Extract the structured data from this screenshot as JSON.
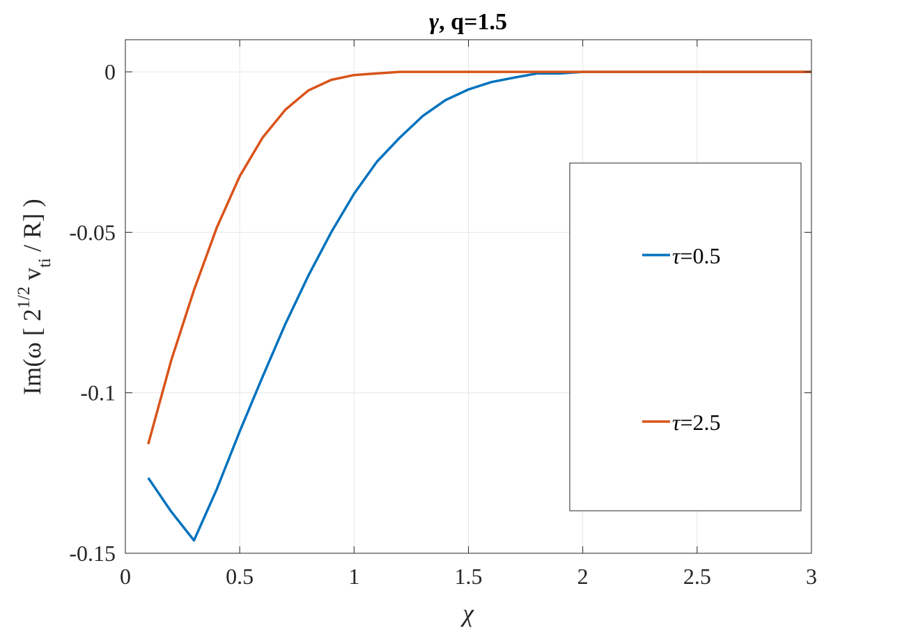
{
  "chart_data": {
    "type": "line",
    "title_prefix": "γ",
    "title_suffix": ", q=1.5",
    "xlabel": "χ",
    "ylabel_parts": {
      "pre": "Im(ω [ 2",
      "sup": "1/2",
      "mid": " v",
      "sub": "ti",
      "post": " / R] )"
    },
    "xlim": [
      0,
      3
    ],
    "ylim": [
      -0.15,
      0.01
    ],
    "xticks": [
      0,
      0.5,
      1,
      1.5,
      2,
      2.5,
      3
    ],
    "xtick_labels": [
      "0",
      "0.5",
      "1",
      "1.5",
      "2",
      "2.5",
      "3"
    ],
    "yticks": [
      -0.15,
      -0.1,
      -0.05,
      0
    ],
    "ytick_labels": [
      "-0.15",
      "-0.1",
      "-0.05",
      "0"
    ],
    "grid": true,
    "legend_position": "right",
    "series": [
      {
        "name_symbol": "τ",
        "name_value": "=0.5",
        "color": "#0072BD",
        "x": [
          0.1,
          0.2,
          0.3,
          0.4,
          0.5,
          0.6,
          0.7,
          0.8,
          0.9,
          1.0,
          1.1,
          1.2,
          1.3,
          1.4,
          1.5,
          1.6,
          1.7,
          1.8,
          1.9,
          2.0,
          2.1,
          2.2,
          2.3,
          2.4,
          2.5,
          2.6,
          2.7,
          2.8,
          2.9,
          3.0
        ],
        "y": [
          -0.1265,
          -0.137,
          -0.146,
          -0.13,
          -0.112,
          -0.095,
          -0.0785,
          -0.0635,
          -0.05,
          -0.038,
          -0.028,
          -0.0205,
          -0.0138,
          -0.0088,
          -0.0055,
          -0.0032,
          -0.0018,
          -0.0005,
          -0.0005,
          0,
          0,
          0,
          0,
          0,
          0,
          0,
          0,
          0,
          0,
          0
        ]
      },
      {
        "name_symbol": "τ",
        "name_value": "=2.5",
        "color": "#D95319",
        "x": [
          0.1,
          0.2,
          0.3,
          0.4,
          0.5,
          0.6,
          0.7,
          0.8,
          0.9,
          1.0,
          1.1,
          1.2,
          1.3,
          1.4,
          1.5,
          1.6,
          1.7,
          1.8,
          1.9,
          2.0,
          2.1,
          2.2,
          2.3,
          2.4,
          2.5,
          2.6,
          2.7,
          2.8,
          2.9,
          3.0
        ],
        "y": [
          -0.116,
          -0.09,
          -0.068,
          -0.0485,
          -0.0325,
          -0.0205,
          -0.0118,
          -0.0058,
          -0.0025,
          -0.001,
          -0.0005,
          0,
          0,
          0,
          0,
          0,
          0,
          0,
          0,
          0,
          0,
          0,
          0,
          0,
          0,
          0,
          0,
          0,
          0,
          0
        ]
      }
    ]
  }
}
